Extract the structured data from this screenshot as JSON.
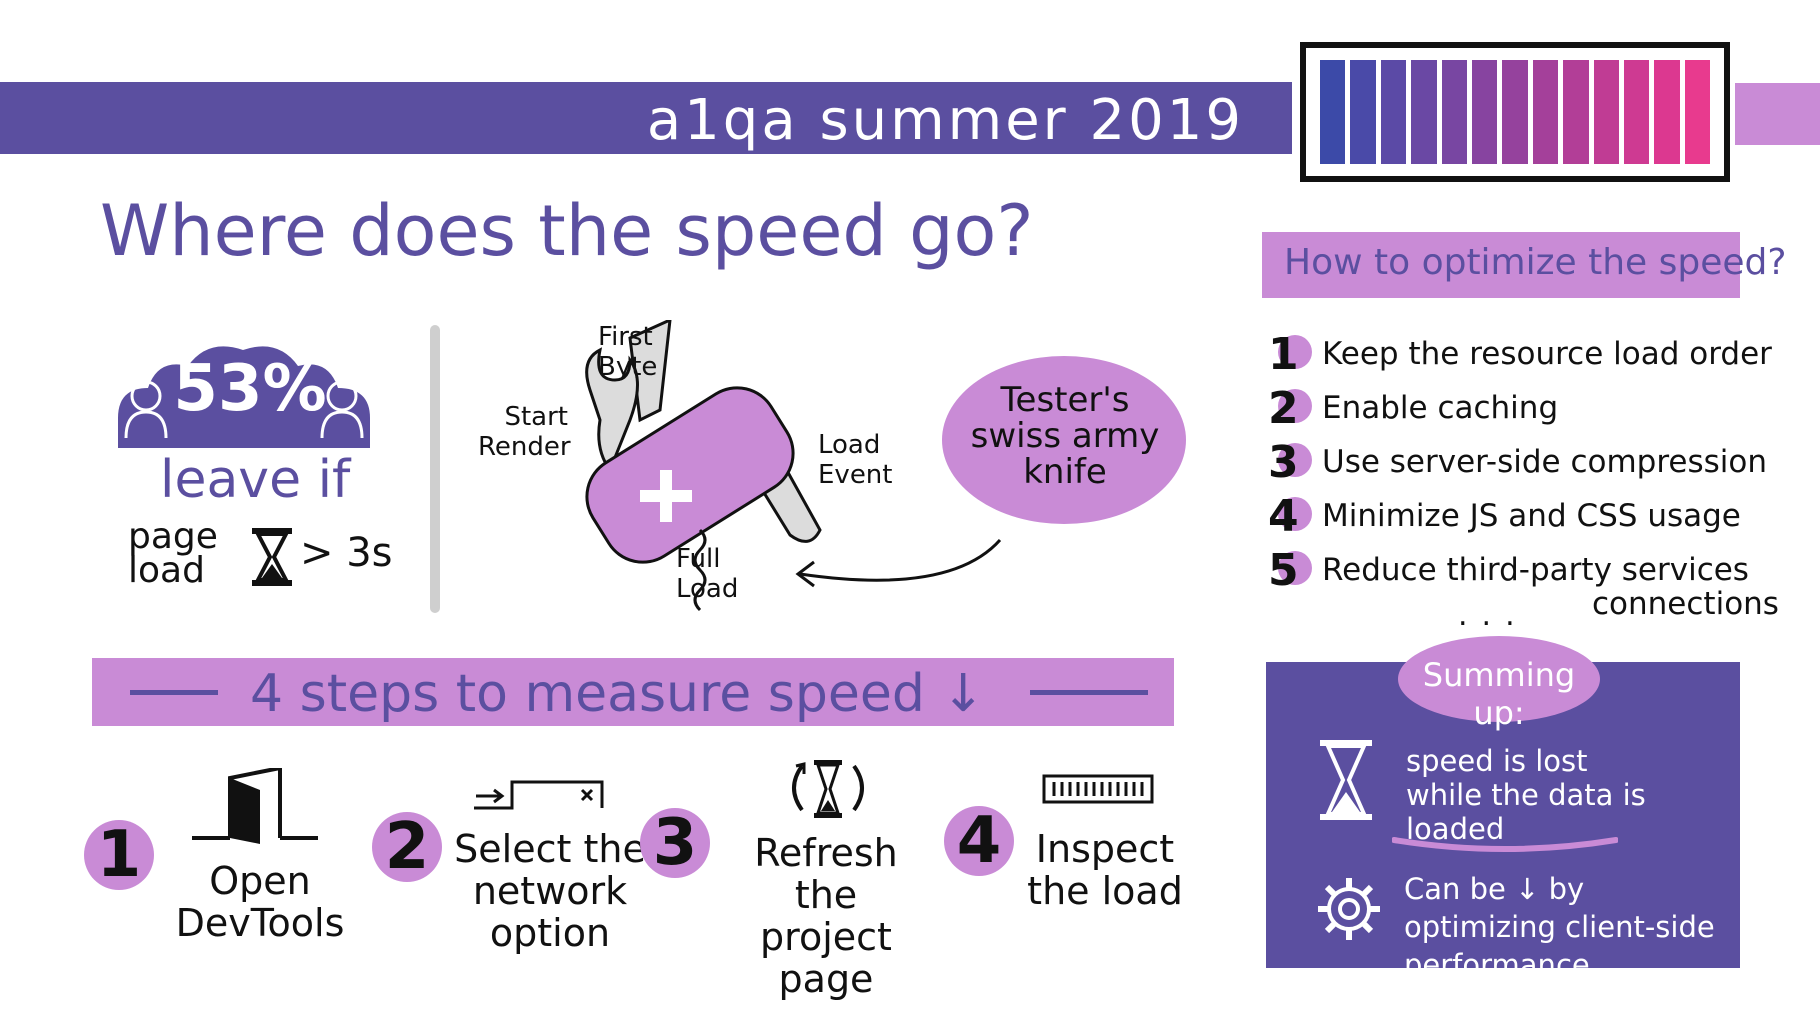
{
  "banner": {
    "title": "a1qa summer 2019"
  },
  "colors": {
    "purple": "#5b4fa0",
    "lilac": "#c98bd6",
    "meter_gradient": [
      "#3c4aa8",
      "#4a4aa8",
      "#5b4aa6",
      "#6a48a4",
      "#7846a2",
      "#8744a0",
      "#95429d",
      "#a4409a",
      "#b23e97",
      "#c03c94",
      "#ce3a92",
      "#dc3890",
      "#e83a8e"
    ]
  },
  "speed_meter": {
    "icon": "battery-meter-icon",
    "segments": 13
  },
  "main": {
    "title": "Where does the speed go?",
    "stat": {
      "percent": "53%",
      "leave": "leave if",
      "page_load": "page load",
      "threshold": "> 3s",
      "icon": "hourglass-icon"
    },
    "knife": {
      "first_byte": "First Byte",
      "start_render": "Start Render",
      "load_event": "Load Event",
      "full_load": "Full Load",
      "tester": "Tester's swiss army knife"
    }
  },
  "optimize": {
    "title": "How to optimize the speed?",
    "tips": [
      {
        "num": "1",
        "text": "Keep the resource load order"
      },
      {
        "num": "2",
        "text": "Enable caching"
      },
      {
        "num": "3",
        "text": "Use server-side compression"
      },
      {
        "num": "4",
        "text": "Minimize JS and CSS usage"
      },
      {
        "num": "5",
        "text": "Reduce third-party services"
      }
    ],
    "tip5_extra": "connections",
    "ellipsis": "..."
  },
  "summary": {
    "title": "Summing up:",
    "line1": "speed is lost while the data is loaded",
    "line2": "Can be ↓ by optimizing client-side performance"
  },
  "steps": {
    "title": "4 steps to measure speed ↓",
    "items": [
      {
        "num": "1",
        "text": "Open DevTools",
        "icon": "door-icon"
      },
      {
        "num": "2",
        "text": "Select the network option",
        "icon": "network-tab-icon"
      },
      {
        "num": "3",
        "text": "Refresh the project page",
        "icon": "refresh-hourglass-icon"
      },
      {
        "num": "4",
        "text": "Inspect the load",
        "icon": "load-bar-icon"
      }
    ]
  }
}
